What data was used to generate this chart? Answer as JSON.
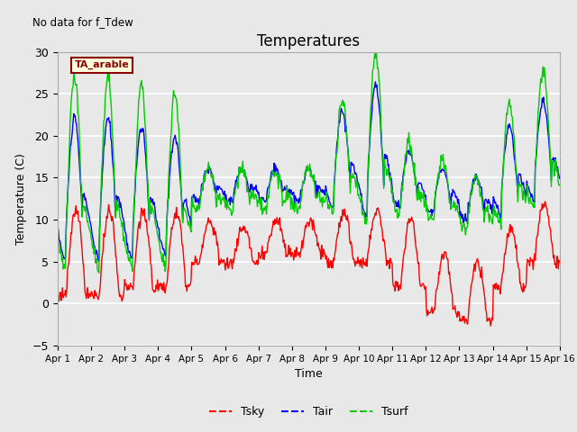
{
  "title": "Temperatures",
  "xlabel": "Time",
  "ylabel": "Temperature (C)",
  "ylim": [
    -5,
    30
  ],
  "xlim": [
    0,
    15
  ],
  "annotation": "No data for f_Tdew",
  "legend_label": "TA_arable",
  "xtick_labels": [
    "Apr 1",
    "Apr 2",
    "Apr 3",
    "Apr 4",
    "Apr 5",
    "Apr 6",
    "Apr 7",
    "Apr 8",
    "Apr 9",
    "Apr 10",
    "Apr 11",
    "Apr 12",
    "Apr 13",
    "Apr 14",
    "Apr 15",
    "Apr 16"
  ],
  "ytick_values": [
    -5,
    0,
    5,
    10,
    15,
    20,
    25,
    30
  ],
  "bg_color": "#e8e8e8",
  "plot_bg_color": "#e8e8e8",
  "tsky_color": "#ff0000",
  "tair_color": "#0000ff",
  "tsurf_color": "#00cc00",
  "line_width": 1.0
}
